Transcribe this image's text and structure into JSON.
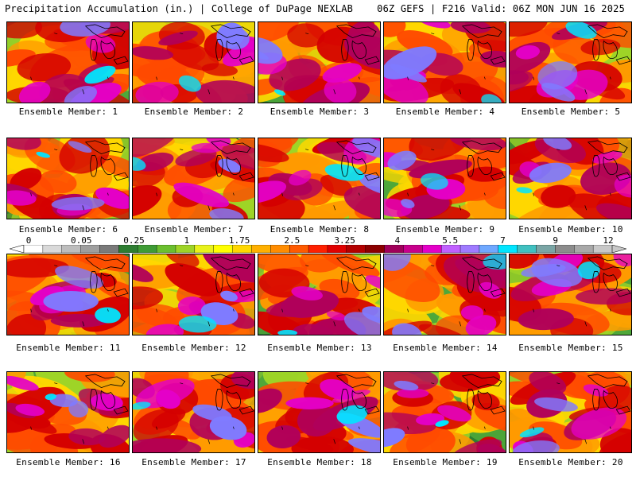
{
  "header": {
    "left_title": "Precipitation Accumulation (in.) | College of DuPage NEXLAB",
    "right_title": "06Z GEFS | F216 Valid: 06Z MON JUN 16 2025"
  },
  "panels": [
    {
      "label": "Ensemble Member: 1",
      "seed": 1
    },
    {
      "label": "Ensemble Member: 2",
      "seed": 2
    },
    {
      "label": "Ensemble Member: 3",
      "seed": 3
    },
    {
      "label": "Ensemble Member: 4",
      "seed": 4
    },
    {
      "label": "Ensemble Member: 5",
      "seed": 5
    },
    {
      "label": "Ensemble Member: 6",
      "seed": 6
    },
    {
      "label": "Ensemble Member: 7",
      "seed": 7
    },
    {
      "label": "Ensemble Member: 8",
      "seed": 8
    },
    {
      "label": "Ensemble Member: 9",
      "seed": 9
    },
    {
      "label": "Ensemble Member: 10",
      "seed": 10
    },
    {
      "label": "Ensemble Member: 11",
      "seed": 11
    },
    {
      "label": "Ensemble Member: 12",
      "seed": 12
    },
    {
      "label": "Ensemble Member: 13",
      "seed": 13
    },
    {
      "label": "Ensemble Member: 14",
      "seed": 14
    },
    {
      "label": "Ensemble Member: 15",
      "seed": 15
    },
    {
      "label": "Ensemble Member: 16",
      "seed": 16
    },
    {
      "label": "Ensemble Member: 17",
      "seed": 17
    },
    {
      "label": "Ensemble Member: 18",
      "seed": 18
    },
    {
      "label": "Ensemble Member: 19",
      "seed": 19
    },
    {
      "label": "Ensemble Member: 20",
      "seed": 20
    }
  ],
  "colorbar": {
    "labels": [
      "0",
      "0.05",
      "0.25",
      "1",
      "1.75",
      "2.5",
      "3.25",
      "4",
      "5.5",
      "7",
      "9",
      "12"
    ],
    "colors": [
      "#ffffff",
      "#d9d9d9",
      "#bdbdbd",
      "#9e9e9e",
      "#7a7a7a",
      "#2e7d32",
      "#3e9b35",
      "#6bbf2e",
      "#9ed427",
      "#e8f21b",
      "#ffff00",
      "#ffd700",
      "#ffb000",
      "#ff8c00",
      "#ff5a00",
      "#ff2000",
      "#e00000",
      "#b30000",
      "#8b0000",
      "#a0005a",
      "#c8008c",
      "#e400c8",
      "#c060ff",
      "#9f7bff",
      "#6fa8ff",
      "#00e5ff",
      "#40c0c0",
      "#7aa5a5",
      "#8c8c8c",
      "#a8a8a8",
      "#c8c8c8"
    ]
  },
  "map_palette": [
    "#2e7d32",
    "#4fa83a",
    "#9ed427",
    "#e8f21b",
    "#ffd700",
    "#ff9a00",
    "#ff4a00",
    "#d40000",
    "#b0005a",
    "#e400c8",
    "#7f7bff",
    "#00e5ff",
    "#9e9e9e"
  ]
}
